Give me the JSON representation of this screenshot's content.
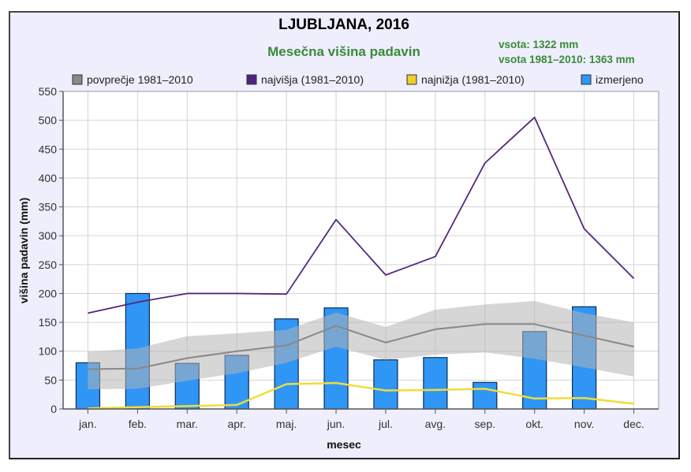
{
  "chart_data": {
    "type": "bar",
    "title": "LJUBLJANA, 2016",
    "subtitle": "Mesečna višina padavin",
    "annotations": [
      "vsota: 1322 mm",
      "vsota 1981–2010: 1363 mm"
    ],
    "xlabel": "mesec",
    "ylabel": "višina padavin (mm)",
    "ylim": [
      0,
      550
    ],
    "yticks": [
      0,
      50,
      100,
      150,
      200,
      250,
      300,
      350,
      400,
      450,
      500,
      550
    ],
    "grid": true,
    "legend_position": "top",
    "categories": [
      "jan.",
      "feb.",
      "mar.",
      "apr.",
      "maj.",
      "jun.",
      "jul.",
      "avg.",
      "sep.",
      "okt.",
      "nov.",
      "dec."
    ],
    "series": [
      {
        "name": "povprečje 1981–2010",
        "kind": "line",
        "color": "#888888",
        "values": [
          69,
          70,
          88,
          100,
          110,
          144,
          115,
          138,
          147,
          147,
          127,
          108
        ],
        "band_upper": [
          99,
          105,
          126,
          131,
          137,
          167,
          142,
          172,
          181,
          187,
          166,
          150
        ],
        "band_lower": [
          34,
          35,
          49,
          62,
          80,
          108,
          85,
          94,
          98,
          87,
          72,
          56
        ]
      },
      {
        "name": "najvišja (1981–2010)",
        "kind": "line",
        "color": "#55287a",
        "values": [
          166,
          185,
          200,
          200,
          199,
          328,
          232,
          264,
          426,
          505,
          312,
          226
        ]
      },
      {
        "name": "najnižja (1981–2010)",
        "kind": "line",
        "color": "#f0dc3c",
        "values": [
          1,
          3,
          5,
          7,
          43,
          45,
          32,
          33,
          35,
          18,
          19,
          9
        ]
      },
      {
        "name": "izmerjeno",
        "kind": "bar",
        "color": "#2f96f5",
        "values": [
          80,
          200,
          79,
          93,
          156,
          175,
          85,
          89,
          46,
          134,
          177,
          null
        ]
      }
    ]
  },
  "legend": {
    "items": [
      {
        "label": "povprečje 1981–2010",
        "color": "#888888"
      },
      {
        "label": "najvišja (1981–2010)",
        "color": "#4b2382"
      },
      {
        "label": "najnižja (1981–2010)",
        "color": "#f2cc30"
      },
      {
        "label": "izmerjeno",
        "color": "#2f96f5"
      }
    ]
  }
}
